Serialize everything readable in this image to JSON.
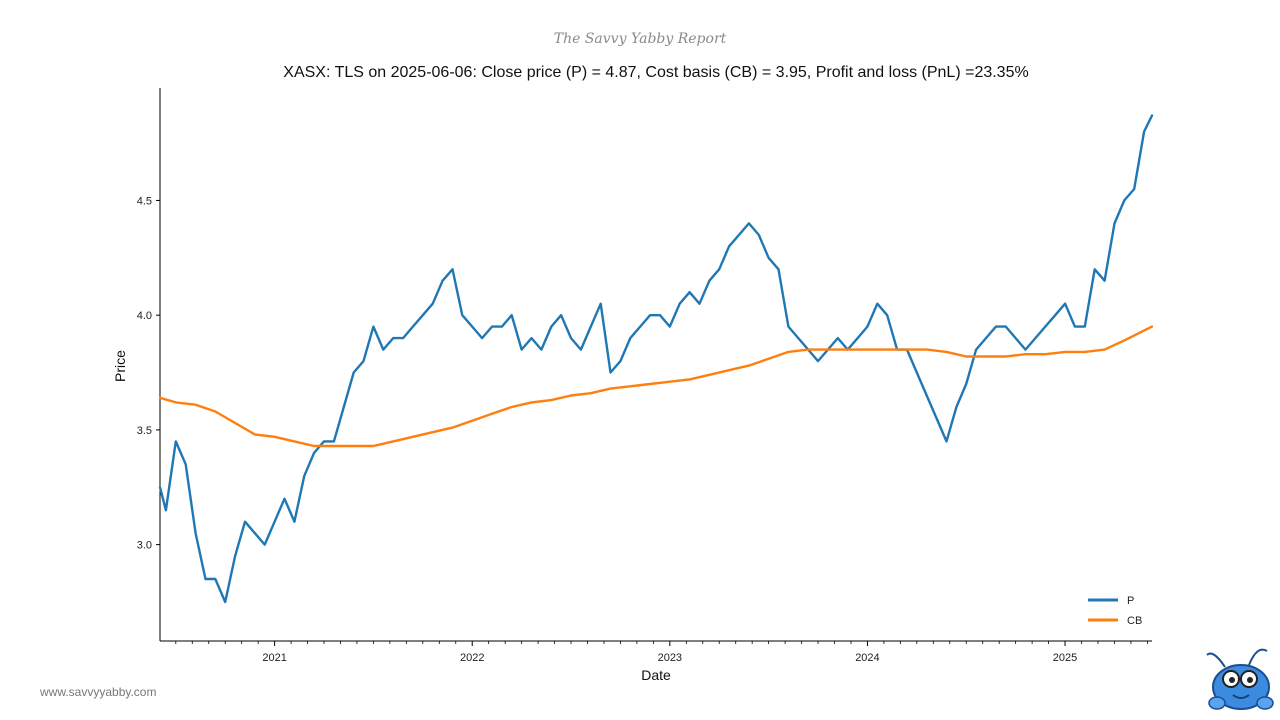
{
  "brand": "The Savvy Yabby Report",
  "website": "www.savvyyabby.com",
  "logo": "yabby-mascot",
  "chart_data": {
    "type": "line",
    "title": "XASX: TLS on 2025-06-06: Close price (P) = 4.87, Cost basis (CB) = 3.95, Profit and loss (PnL) =23.35%",
    "xlabel": "Date",
    "ylabel": "Price",
    "x_range": [
      2020.42,
      2025.44
    ],
    "ylim": [
      2.58,
      4.99
    ],
    "x_ticks": [
      2021,
      2022,
      2023,
      2024,
      2025
    ],
    "x_tick_labels": [
      "2021",
      "2022",
      "2023",
      "2024",
      "2025"
    ],
    "y_ticks": [
      3.0,
      3.5,
      4.0,
      4.5
    ],
    "y_tick_labels": [
      "3.0",
      "3.5",
      "4.0",
      "4.5"
    ],
    "legend_position": "bottom-right",
    "series": [
      {
        "name": "P",
        "color": "#1f77b4",
        "x": [
          2020.42,
          2020.45,
          2020.5,
          2020.55,
          2020.6,
          2020.65,
          2020.7,
          2020.75,
          2020.8,
          2020.85,
          2020.9,
          2020.95,
          2021.0,
          2021.05,
          2021.1,
          2021.15,
          2021.2,
          2021.25,
          2021.3,
          2021.35,
          2021.4,
          2021.45,
          2021.5,
          2021.55,
          2021.6,
          2021.65,
          2021.7,
          2021.75,
          2021.8,
          2021.85,
          2021.9,
          2021.95,
          2022.0,
          2022.05,
          2022.1,
          2022.15,
          2022.2,
          2022.25,
          2022.3,
          2022.35,
          2022.4,
          2022.45,
          2022.5,
          2022.55,
          2022.6,
          2022.65,
          2022.7,
          2022.75,
          2022.8,
          2022.85,
          2022.9,
          2022.95,
          2023.0,
          2023.05,
          2023.1,
          2023.15,
          2023.2,
          2023.25,
          2023.3,
          2023.35,
          2023.4,
          2023.45,
          2023.5,
          2023.55,
          2023.6,
          2023.65,
          2023.7,
          2023.75,
          2023.8,
          2023.85,
          2023.9,
          2023.95,
          2024.0,
          2024.05,
          2024.1,
          2024.15,
          2024.2,
          2024.25,
          2024.3,
          2024.35,
          2024.4,
          2024.45,
          2024.5,
          2024.55,
          2024.6,
          2024.65,
          2024.7,
          2024.75,
          2024.8,
          2024.85,
          2024.9,
          2024.95,
          2025.0,
          2025.05,
          2025.1,
          2025.15,
          2025.2,
          2025.25,
          2025.3,
          2025.35,
          2025.4,
          2025.44
        ],
        "values": [
          3.25,
          3.15,
          3.45,
          3.35,
          3.05,
          2.85,
          2.85,
          2.75,
          2.95,
          3.1,
          3.05,
          3.0,
          3.1,
          3.2,
          3.1,
          3.3,
          3.4,
          3.45,
          3.45,
          3.6,
          3.75,
          3.8,
          3.95,
          3.85,
          3.9,
          3.9,
          3.95,
          4.0,
          4.05,
          4.15,
          4.2,
          4.0,
          3.95,
          3.9,
          3.95,
          3.95,
          4.0,
          3.85,
          3.9,
          3.85,
          3.95,
          4.0,
          3.9,
          3.85,
          3.95,
          4.05,
          3.75,
          3.8,
          3.9,
          3.95,
          4.0,
          4.0,
          3.95,
          4.05,
          4.1,
          4.05,
          4.15,
          4.2,
          4.3,
          4.35,
          4.4,
          4.35,
          4.25,
          4.2,
          3.95,
          3.9,
          3.85,
          3.8,
          3.85,
          3.9,
          3.85,
          3.9,
          3.95,
          4.05,
          4.0,
          3.85,
          3.85,
          3.75,
          3.65,
          3.55,
          3.45,
          3.6,
          3.7,
          3.85,
          3.9,
          3.95,
          3.95,
          3.9,
          3.85,
          3.9,
          3.95,
          4.0,
          4.05,
          3.95,
          3.95,
          4.2,
          4.15,
          4.4,
          4.5,
          4.55,
          4.8,
          4.87
        ]
      },
      {
        "name": "CB",
        "color": "#ff7f0e",
        "x": [
          2020.42,
          2020.5,
          2020.6,
          2020.7,
          2020.8,
          2020.9,
          2021.0,
          2021.1,
          2021.2,
          2021.3,
          2021.4,
          2021.5,
          2021.6,
          2021.7,
          2021.8,
          2021.9,
          2022.0,
          2022.1,
          2022.2,
          2022.3,
          2022.4,
          2022.5,
          2022.6,
          2022.7,
          2022.8,
          2022.9,
          2023.0,
          2023.1,
          2023.2,
          2023.3,
          2023.4,
          2023.5,
          2023.6,
          2023.7,
          2023.8,
          2023.9,
          2024.0,
          2024.1,
          2024.2,
          2024.3,
          2024.4,
          2024.5,
          2024.6,
          2024.7,
          2024.8,
          2024.9,
          2025.0,
          2025.1,
          2025.2,
          2025.3,
          2025.44
        ],
        "values": [
          3.64,
          3.62,
          3.61,
          3.58,
          3.53,
          3.48,
          3.47,
          3.45,
          3.43,
          3.43,
          3.43,
          3.43,
          3.45,
          3.47,
          3.49,
          3.51,
          3.54,
          3.57,
          3.6,
          3.62,
          3.63,
          3.65,
          3.66,
          3.68,
          3.69,
          3.7,
          3.71,
          3.72,
          3.74,
          3.76,
          3.78,
          3.81,
          3.84,
          3.85,
          3.85,
          3.85,
          3.85,
          3.85,
          3.85,
          3.85,
          3.84,
          3.82,
          3.82,
          3.82,
          3.83,
          3.83,
          3.84,
          3.84,
          3.85,
          3.89,
          3.95
        ]
      }
    ]
  }
}
